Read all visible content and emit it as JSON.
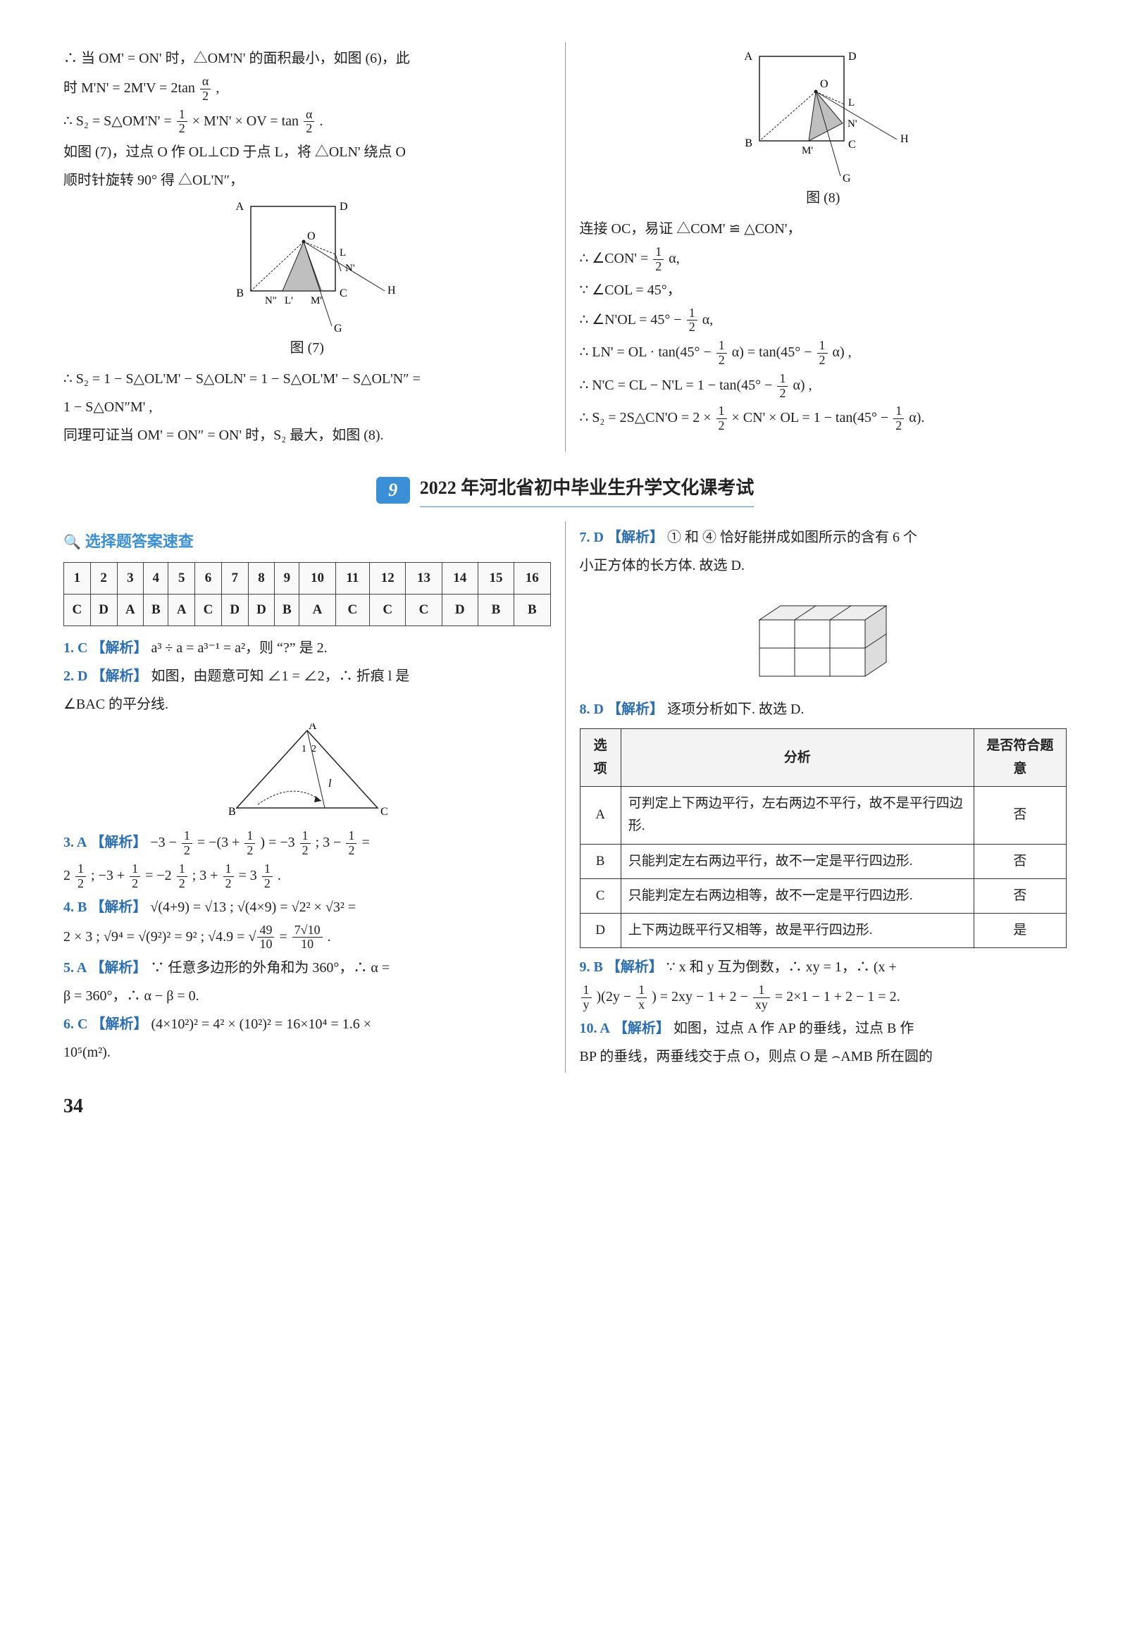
{
  "page_number": "34",
  "top": {
    "left": {
      "p1": "∴ 当 OM' = ON' 时，△OM'N' 的面积最小，如图 (6)，此",
      "p2_prefix": "时 M'N' = 2M'V = 2tan ",
      "p2_suffix": " ,",
      "p3_prefix": "∴ S₂ = S△OM'N' = ",
      "p3_mid": " × M'N' × OV = tan ",
      "p3_suffix": ".",
      "p4": "如图 (7)，过点 O 作 OL⊥CD 于点 L，将 △OLN' 绕点 O",
      "p5": "顺时针旋转 90° 得 △OL'N″，",
      "fig7_caption": "图 (7)",
      "p6": "∴ S₂ = 1 − S△OL'M' − S△OLN' = 1 − S△OL'M' − S△OL'N″ =",
      "p7": "1 − S△ON″M' ,",
      "p8": "同理可证当 OM' = ON″ = ON' 时，S₂ 最大，如图 (8)."
    },
    "right": {
      "fig8_caption": "图 (8)",
      "p1": "连接 OC，易证 △COM' ≌ △CON'，",
      "p2_prefix": "∴ ∠CON' = ",
      "p2_suffix": "α,",
      "p3": "∵ ∠COL = 45°，",
      "p4_prefix": "∴ ∠N'OL = 45° − ",
      "p4_suffix": "α,",
      "p5_prefix": "∴ LN' = OL · tan(45° − ",
      "p5_mid": "α) = tan(45° − ",
      "p5_suffix": "α) ,",
      "p6_prefix": "∴ N'C = CL − N'L = 1 − tan(45° − ",
      "p6_suffix": "α) ,",
      "p7_prefix": "∴ S₂ = 2S△CN'O = 2 × ",
      "p7_mid": " × CN' × OL = 1 − tan(45° − ",
      "p7_suffix": "α)."
    }
  },
  "banner": {
    "num": "9",
    "title": "2022 年河北省初中毕业生升学文化课考试"
  },
  "quick_header": "选择题答案速查",
  "answer_grid": {
    "nums": [
      "1",
      "2",
      "3",
      "4",
      "5",
      "6",
      "7",
      "8",
      "9",
      "10",
      "11",
      "12",
      "13",
      "14",
      "15",
      "16"
    ],
    "ans": [
      "C",
      "D",
      "A",
      "B",
      "A",
      "C",
      "D",
      "D",
      "B",
      "A",
      "C",
      "C",
      "C",
      "D",
      "B",
      "B"
    ]
  },
  "questions_left": {
    "q1": {
      "num": "1. C",
      "tag": "【解析】",
      "text": "a³ ÷ a = a³⁻¹ = a²，则 “?” 是 2."
    },
    "q2": {
      "num": "2. D",
      "tag": "【解析】",
      "text": "如图，由题意可知 ∠1 = ∠2，∴ 折痕 l 是",
      "text2": "∠BAC 的平分线."
    },
    "q3": {
      "num": "3. A",
      "tag": "【解析】",
      "line1_a": "−3 − ",
      "line1_b": " = −(3 + ",
      "line1_c": ") = −3",
      "line1_d": " ; 3 − ",
      "line1_e": " =",
      "line2_a": "2",
      "line2_b": " ; −3 + ",
      "line2_c": " = −2",
      "line2_d": " ; 3 + ",
      "line2_e": " = 3",
      "line2_f": "."
    },
    "q4": {
      "num": "4. B",
      "tag": "【解析】",
      "line1": "√(4+9) = √13 ; √(4×9) = √2² × √3² =",
      "line2_a": "2 × 3 ; √9⁴ = √(9²)² = 9² ; √4.9 = ",
      "line2_b": " = ",
      "line2_c": "."
    },
    "q5": {
      "num": "5. A",
      "tag": "【解析】",
      "text": "∵ 任意多边形的外角和为 360°，∴ α =",
      "text2": "β = 360°，∴ α − β = 0."
    },
    "q6": {
      "num": "6. C",
      "tag": "【解析】",
      "text": "(4×10²)² = 4² × (10²)² = 16×10⁴ = 1.6 ×",
      "text2": "10⁵(m²)."
    }
  },
  "questions_right": {
    "q7": {
      "num": "7. D",
      "tag": "【解析】",
      "text": "① 和 ④ 恰好能拼成如图所示的含有 6 个",
      "text2": "小正方体的长方体. 故选 D."
    },
    "q8": {
      "num": "8. D",
      "tag": "【解析】",
      "text": "逐项分析如下. 故选 D."
    },
    "table8": {
      "headers": [
        "选项",
        "分析",
        "是否符合题意"
      ],
      "rows": [
        [
          "A",
          "可判定上下两边平行，左右两边不平行，故不是平行四边形.",
          "否"
        ],
        [
          "B",
          "只能判定左右两边平行，故不一定是平行四边形.",
          "否"
        ],
        [
          "C",
          "只能判定左右两边相等，故不一定是平行四边形.",
          "否"
        ],
        [
          "D",
          "上下两边既平行又相等，故是平行四边形.",
          "是"
        ]
      ]
    },
    "q9": {
      "num": "9. B",
      "tag": "【解析】",
      "line1": "∵ x 和 y 互为倒数，∴ xy = 1，∴ (x +",
      "line2_a": ")(2y − ",
      "line2_b": ") = 2xy − 1 + 2 − ",
      "line2_c": " = 2×1 − 1 + 2 − 1 = 2."
    },
    "q10": {
      "num": "10. A",
      "tag": "【解析】",
      "text": "如图，过点 A 作 AP 的垂线，过点 B 作",
      "text2": "BP 的垂线，两垂线交于点 O，则点 O 是 ⌢AMB 所在圆的"
    }
  },
  "frac_half": {
    "n": "1",
    "d": "2"
  },
  "frac_alpha2": {
    "n": "α",
    "d": "2"
  },
  "frac_49_10": {
    "n": "49",
    "d": "10"
  },
  "frac_7r10_10": {
    "n": "7√10",
    "d": "10"
  },
  "frac_1y": {
    "n": "1",
    "d": "y"
  },
  "frac_1x": {
    "n": "1",
    "d": "x"
  },
  "frac_1xy": {
    "n": "1",
    "d": "xy"
  },
  "colors": {
    "accent": "#3b8fd6",
    "qnum": "#2c6fb5",
    "text": "#222222",
    "border": "#333333"
  },
  "fig7": {
    "labels": {
      "A": "A",
      "D": "D",
      "O": "O",
      "L": "L",
      "N'": "N'",
      "B": "B",
      "N\"": "N″",
      "L'": "L'",
      "M'": "M'",
      "C": "C",
      "H": "H",
      "G": "G"
    }
  },
  "fig8": {
    "labels": {
      "A": "A",
      "D": "D",
      "O": "O",
      "L": "L",
      "N'": "N'",
      "B": "B",
      "M'": "M'",
      "C": "C",
      "H": "H",
      "G": "G"
    }
  }
}
